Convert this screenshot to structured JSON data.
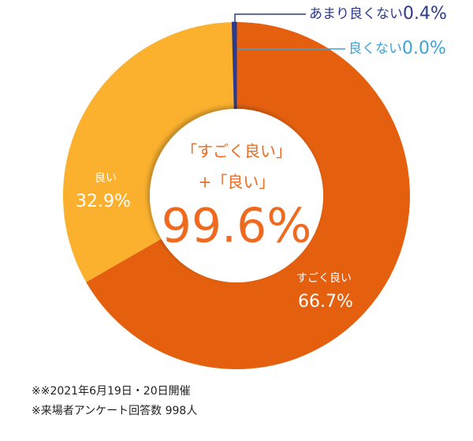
{
  "chart_data": {
    "type": "donut",
    "categories": [
      "すごく良い",
      "良い",
      "あまり良くない",
      "良くない"
    ],
    "values": [
      66.7,
      32.9,
      0.4,
      0.0
    ],
    "value_labels": [
      "66.7%",
      "32.9%",
      "0.4%",
      "0.0%"
    ],
    "colors": [
      "#e4600f",
      "#fbb12e",
      "#2b3a8c",
      "#3ba3d9"
    ],
    "center_lines": [
      "「すごく良い」",
      "+「良い」"
    ],
    "center_value": "99.6%",
    "notes": [
      "※※2021年6月19日・20日開催",
      "※来場者アンケート回答数 998人"
    ]
  }
}
